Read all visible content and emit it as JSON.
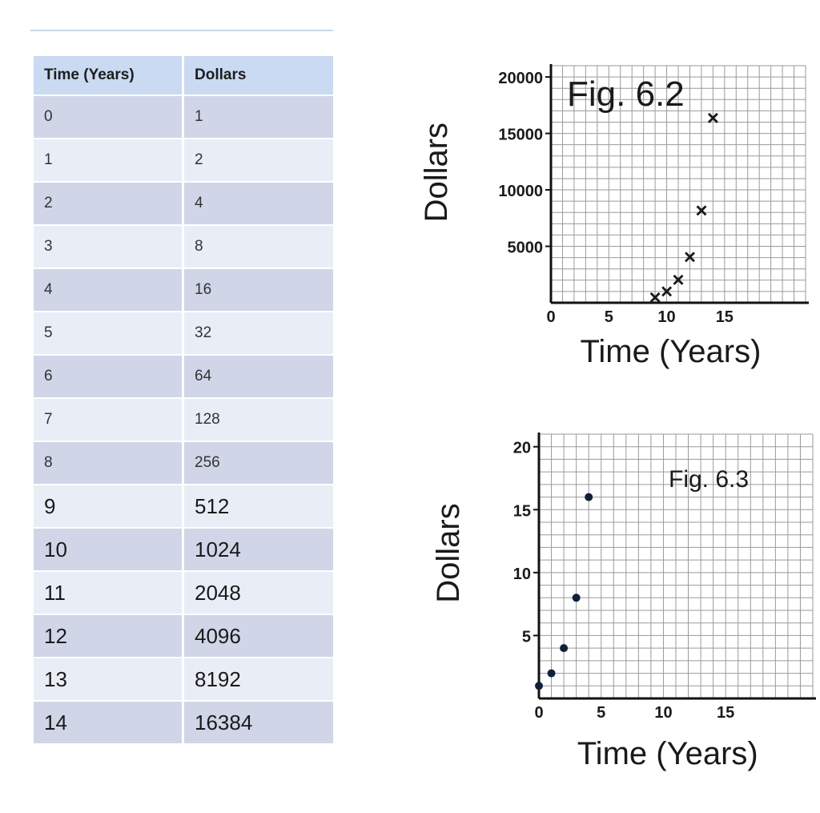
{
  "table": {
    "headers": [
      "Time (Years)",
      "Dollars"
    ],
    "rows": [
      [
        "0",
        "1"
      ],
      [
        "1",
        "2"
      ],
      [
        "2",
        "4"
      ],
      [
        "3",
        "8"
      ],
      [
        "4",
        "16"
      ],
      [
        "5",
        "32"
      ],
      [
        "6",
        "64"
      ],
      [
        "7",
        "128"
      ],
      [
        "8",
        "256"
      ],
      [
        "9",
        "512"
      ],
      [
        "10",
        "1024"
      ],
      [
        "11",
        "2048"
      ],
      [
        "12",
        "4096"
      ],
      [
        "13",
        "8192"
      ],
      [
        "14",
        "16384"
      ]
    ]
  },
  "chart_data": [
    {
      "type": "scatter",
      "annotation": "Fig. 6.2",
      "xlabel": "Time (Years)",
      "ylabel": "Dollars",
      "xlim": [
        0,
        22
      ],
      "ylim": [
        0,
        21000
      ],
      "xticks": [
        0,
        5,
        10,
        15
      ],
      "yticks": [
        5000,
        10000,
        15000,
        20000
      ],
      "grid": true,
      "marker": "x",
      "series": [
        {
          "x": [
            9,
            10,
            11,
            12,
            13,
            14
          ],
          "y": [
            512,
            1024,
            2048,
            4096,
            8192,
            16384
          ]
        }
      ]
    },
    {
      "type": "scatter",
      "annotation": "Fig. 6.3",
      "xlabel": "Time (Years)",
      "ylabel": "Dollars",
      "xlim": [
        0,
        22
      ],
      "ylim": [
        0,
        21
      ],
      "xticks": [
        0,
        5,
        10,
        15
      ],
      "yticks": [
        5,
        10,
        15,
        20
      ],
      "grid": true,
      "marker": "dot",
      "color": "#10203a",
      "series": [
        {
          "x": [
            0,
            1,
            2,
            3,
            4
          ],
          "y": [
            1,
            2,
            4,
            8,
            16
          ]
        }
      ]
    }
  ]
}
